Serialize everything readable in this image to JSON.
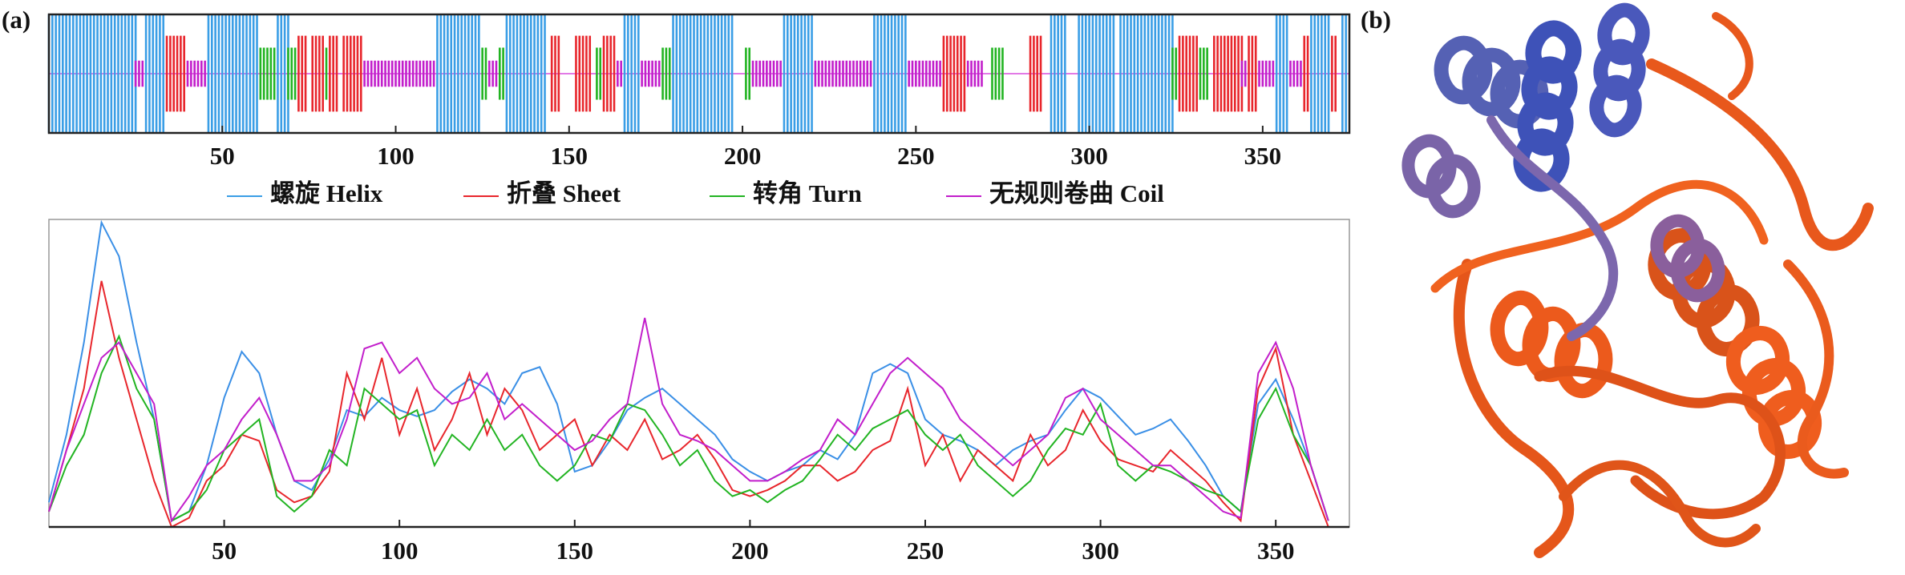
{
  "panel_labels": [
    "(a)",
    "(b)"
  ],
  "chart_data": [
    {
      "type": "segments",
      "xlim": [
        0,
        375
      ],
      "xticks": [
        50,
        100,
        150,
        200,
        250,
        300,
        350
      ],
      "series": [
        {
          "name": "螺旋 Helix",
          "color": "#3a9ee6",
          "segments": [
            [
              0,
              25
            ],
            [
              28,
              33
            ],
            [
              46,
              60
            ],
            [
              66,
              69
            ],
            [
              112,
              124
            ],
            [
              132,
              142
            ],
            [
              143,
              143
            ],
            [
              166,
              170
            ],
            [
              180,
              195
            ],
            [
              196,
              197
            ],
            [
              212,
              220
            ],
            [
              238,
              247
            ],
            [
              289,
              293
            ],
            [
              297,
              307
            ],
            [
              309,
              324
            ],
            [
              354,
              357
            ],
            [
              364,
              369
            ],
            [
              373,
              374
            ]
          ]
        },
        {
          "name": "折叠 Sheet",
          "color": "#e8262c",
          "segments": [
            [
              34,
              39
            ],
            [
              72,
              74
            ],
            [
              76,
              79
            ],
            [
              81,
              83
            ],
            [
              85,
              90
            ],
            [
              145,
              147
            ],
            [
              152,
              156
            ],
            [
              160,
              163
            ],
            [
              258,
              264
            ],
            [
              283,
              286
            ],
            [
              326,
              331
            ],
            [
              336,
              344
            ],
            [
              346,
              348
            ],
            [
              362,
              363
            ],
            [
              370,
              371
            ]
          ]
        },
        {
          "name": "转角 Turn",
          "color": "#22b422",
          "segments": [
            [
              61,
              65
            ],
            [
              69,
              71
            ],
            [
              80,
              80
            ],
            [
              125,
              126
            ],
            [
              130,
              131
            ],
            [
              158,
              159
            ],
            [
              177,
              179
            ],
            [
              201,
              202
            ],
            [
              272,
              275
            ],
            [
              324,
              325
            ],
            [
              332,
              334
            ]
          ]
        },
        {
          "name": "无规则卷曲 Coil",
          "color": "#c21ecb",
          "segments": [
            [
              25,
              27
            ],
            [
              40,
              45
            ],
            [
              91,
              111
            ],
            [
              127,
              129
            ],
            [
              164,
              165
            ],
            [
              171,
              176
            ],
            [
              203,
              211
            ],
            [
              221,
              237
            ],
            [
              248,
              257
            ],
            [
              265,
              269
            ],
            [
              344,
              345
            ],
            [
              349,
              353
            ],
            [
              358,
              361
            ]
          ]
        }
      ]
    },
    {
      "type": "line",
      "xlim": [
        0,
        371
      ],
      "ylim": [
        0,
        1
      ],
      "xticks": [
        50,
        100,
        150,
        200,
        250,
        300,
        350
      ],
      "x": [
        0,
        5,
        10,
        15,
        20,
        25,
        30,
        35,
        40,
        45,
        50,
        55,
        60,
        65,
        70,
        75,
        80,
        85,
        90,
        95,
        100,
        105,
        110,
        115,
        120,
        125,
        130,
        135,
        140,
        145,
        150,
        155,
        160,
        165,
        170,
        175,
        180,
        185,
        190,
        195,
        200,
        205,
        210,
        215,
        220,
        225,
        230,
        235,
        240,
        245,
        250,
        255,
        260,
        265,
        270,
        275,
        280,
        285,
        290,
        295,
        300,
        305,
        310,
        315,
        320,
        325,
        330,
        335,
        340,
        345,
        350,
        355,
        360,
        365
      ],
      "series": [
        {
          "color": "#3a8fe6",
          "values": [
            0.08,
            0.3,
            0.6,
            0.99,
            0.88,
            0.6,
            0.35,
            0.02,
            0.05,
            0.2,
            0.42,
            0.57,
            0.5,
            0.3,
            0.15,
            0.12,
            0.22,
            0.38,
            0.36,
            0.42,
            0.38,
            0.36,
            0.38,
            0.44,
            0.48,
            0.45,
            0.4,
            0.5,
            0.52,
            0.4,
            0.18,
            0.2,
            0.28,
            0.38,
            0.42,
            0.45,
            0.4,
            0.35,
            0.3,
            0.22,
            0.18,
            0.15,
            0.18,
            0.2,
            0.25,
            0.22,
            0.3,
            0.5,
            0.53,
            0.5,
            0.35,
            0.3,
            0.28,
            0.25,
            0.2,
            0.25,
            0.28,
            0.3,
            0.38,
            0.45,
            0.42,
            0.36,
            0.3,
            0.32,
            0.35,
            0.28,
            0.2,
            0.1,
            0.05,
            0.4,
            0.48,
            0.35,
            0.2,
            0.02
          ]
        },
        {
          "color": "#e8262c",
          "values": [
            0.05,
            0.25,
            0.45,
            0.8,
            0.55,
            0.35,
            0.15,
            0.0,
            0.03,
            0.15,
            0.2,
            0.3,
            0.28,
            0.12,
            0.08,
            0.1,
            0.18,
            0.5,
            0.35,
            0.55,
            0.3,
            0.45,
            0.25,
            0.35,
            0.5,
            0.3,
            0.45,
            0.38,
            0.25,
            0.3,
            0.35,
            0.2,
            0.3,
            0.25,
            0.35,
            0.22,
            0.25,
            0.3,
            0.22,
            0.12,
            0.1,
            0.12,
            0.15,
            0.2,
            0.2,
            0.15,
            0.18,
            0.25,
            0.28,
            0.45,
            0.2,
            0.3,
            0.15,
            0.25,
            0.2,
            0.15,
            0.3,
            0.2,
            0.25,
            0.38,
            0.28,
            0.22,
            0.2,
            0.18,
            0.25,
            0.2,
            0.15,
            0.08,
            0.02,
            0.45,
            0.58,
            0.3,
            0.15,
            0.0
          ]
        },
        {
          "color": "#22b422",
          "values": [
            0.05,
            0.2,
            0.3,
            0.5,
            0.62,
            0.45,
            0.35,
            0.02,
            0.05,
            0.12,
            0.25,
            0.3,
            0.35,
            0.1,
            0.05,
            0.1,
            0.25,
            0.2,
            0.45,
            0.4,
            0.35,
            0.38,
            0.2,
            0.3,
            0.25,
            0.35,
            0.25,
            0.3,
            0.2,
            0.15,
            0.2,
            0.3,
            0.28,
            0.4,
            0.38,
            0.3,
            0.2,
            0.25,
            0.15,
            0.1,
            0.12,
            0.08,
            0.12,
            0.15,
            0.22,
            0.3,
            0.25,
            0.32,
            0.35,
            0.38,
            0.3,
            0.25,
            0.3,
            0.2,
            0.15,
            0.1,
            0.15,
            0.25,
            0.32,
            0.3,
            0.4,
            0.2,
            0.15,
            0.2,
            0.18,
            0.15,
            0.12,
            0.1,
            0.05,
            0.35,
            0.45,
            0.3,
            0.2,
            0.02
          ]
        },
        {
          "color": "#c21ecb",
          "values": [
            0.05,
            0.25,
            0.4,
            0.55,
            0.6,
            0.5,
            0.4,
            0.02,
            0.1,
            0.2,
            0.25,
            0.35,
            0.42,
            0.3,
            0.15,
            0.15,
            0.2,
            0.35,
            0.58,
            0.6,
            0.5,
            0.55,
            0.45,
            0.4,
            0.42,
            0.5,
            0.35,
            0.4,
            0.35,
            0.3,
            0.25,
            0.28,
            0.35,
            0.4,
            0.68,
            0.4,
            0.3,
            0.28,
            0.25,
            0.2,
            0.15,
            0.15,
            0.18,
            0.22,
            0.25,
            0.35,
            0.3,
            0.4,
            0.5,
            0.55,
            0.5,
            0.45,
            0.35,
            0.3,
            0.25,
            0.2,
            0.25,
            0.3,
            0.42,
            0.45,
            0.35,
            0.3,
            0.25,
            0.2,
            0.2,
            0.15,
            0.1,
            0.05,
            0.03,
            0.5,
            0.6,
            0.45,
            0.2,
            0.02
          ]
        }
      ]
    }
  ]
}
